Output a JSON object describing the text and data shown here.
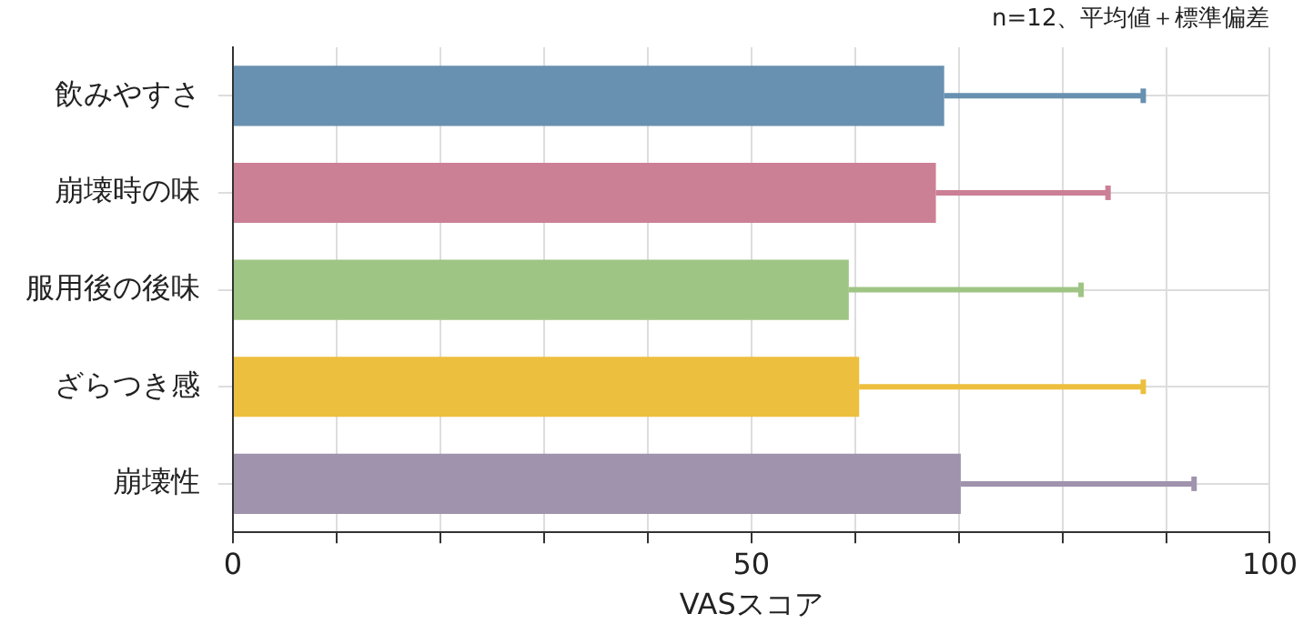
{
  "chart_data": {
    "type": "bar",
    "orientation": "horizontal",
    "xlabel": "VASスコア",
    "annotations": [
      "n=12、平均値＋標準偏差"
    ],
    "categories": [
      "飲みやすさ",
      "崩壊時の味",
      "服用後の後味",
      "ざらつき感",
      "崩壊性"
    ],
    "values": [
      68.6,
      67.8,
      59.4,
      60.4,
      70.2
    ],
    "errors": [
      [
        68.6,
        87.8
      ],
      [
        67.8,
        84.4
      ],
      [
        59.4,
        81.8
      ],
      [
        60.4,
        87.8
      ],
      [
        70.2,
        92.7
      ]
    ],
    "colors": [
      "#6890b0",
      "#cc8095",
      "#9fc585",
      "#edbf3e",
      "#a093ad"
    ],
    "xlim": [
      0,
      100
    ],
    "xticks": [
      0,
      {
        "value": 10,
        "label": null
      },
      {
        "value": 20,
        "label": null
      },
      {
        "value": 30,
        "label": null
      },
      {
        "value": 40,
        "label": null
      },
      50,
      {
        "value": 60,
        "label": null
      },
      {
        "value": 70,
        "label": null
      },
      {
        "value": 80,
        "label": null
      },
      {
        "value": 90,
        "label": null
      },
      100
    ],
    "grid": true
  }
}
